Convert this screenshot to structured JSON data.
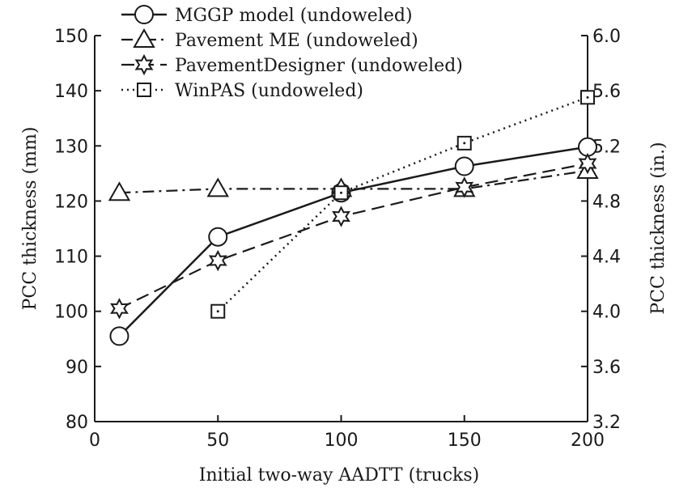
{
  "chart_data": {
    "type": "line",
    "x": [
      10,
      50,
      100,
      150,
      200
    ],
    "xlabel": "Initial two-way AADTT (trucks)",
    "ylabel": "PCC thickness (mm)",
    "y2label": "PCC thickness (in.)",
    "xlim": [
      0,
      200
    ],
    "ylim": [
      80,
      150
    ],
    "y2lim": [
      3.2,
      6.0
    ],
    "xticks": [
      "0",
      "50",
      "100",
      "150",
      "200"
    ],
    "yticks": [
      "80",
      "90",
      "100",
      "110",
      "120",
      "130",
      "140",
      "150"
    ],
    "y2ticks": [
      "3.2",
      "3.6",
      "4.0",
      "4.4",
      "4.8",
      "5.2",
      "5.6",
      "6.0"
    ],
    "legend_position": "top-left",
    "series": [
      {
        "name": "MGGP model (undoweled)",
        "marker": "circle",
        "line": "solid",
        "points": [
          [
            10,
            95.5
          ],
          [
            50,
            113.5
          ],
          [
            100,
            121.5
          ],
          [
            150,
            126.3
          ],
          [
            200,
            129.8
          ]
        ]
      },
      {
        "name": "Pavement ME (undoweled)",
        "marker": "triangle",
        "line": "dashdot",
        "points": [
          [
            10,
            121.5
          ],
          [
            50,
            122.2
          ],
          [
            100,
            122.2
          ],
          [
            150,
            122.2
          ],
          [
            200,
            125.5
          ]
        ]
      },
      {
        "name": "PavementDesigner (undoweled)",
        "marker": "star",
        "line": "dashed",
        "points": [
          [
            10,
            100.5
          ],
          [
            50,
            109.2
          ],
          [
            100,
            117.2
          ],
          [
            150,
            122.5
          ],
          [
            200,
            126.8
          ]
        ]
      },
      {
        "name": "WinPAS (undoweled)",
        "marker": "square",
        "line": "dotted",
        "points": [
          [
            50,
            100.0
          ],
          [
            100,
            121.5
          ],
          [
            150,
            130.5
          ],
          [
            200,
            138.8
          ]
        ]
      }
    ]
  }
}
